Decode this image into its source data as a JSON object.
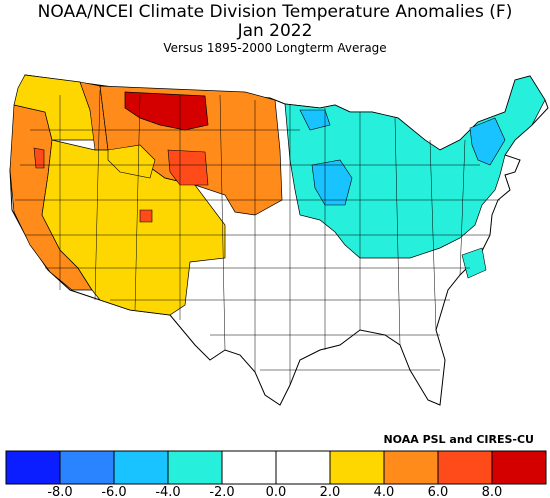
{
  "header": {
    "title": "NOAA/NCEI Climate Division Temperature Anomalies (F)",
    "period": "Jan 2022",
    "subtitle": "Versus 1895-2000 Longterm Average"
  },
  "credit": "NOAA PSL and CIRES-CU",
  "legend": {
    "bins": [
      {
        "color": "#0a1eff",
        "range": [
          -10,
          -8
        ]
      },
      {
        "color": "#2b84ff",
        "range": [
          -8,
          -6
        ]
      },
      {
        "color": "#19c3ff",
        "range": [
          -6,
          -4
        ]
      },
      {
        "color": "#26f0dc",
        "range": [
          -4,
          -2
        ]
      },
      {
        "color": "#ffffff",
        "range": [
          -2,
          0
        ]
      },
      {
        "color": "#ffffff",
        "range": [
          0,
          2
        ]
      },
      {
        "color": "#ffd700",
        "range": [
          2,
          4
        ]
      },
      {
        "color": "#ff8c1a",
        "range": [
          4,
          6
        ]
      },
      {
        "color": "#ff4a1a",
        "range": [
          6,
          8
        ]
      },
      {
        "color": "#d40000",
        "range": [
          8,
          10
        ]
      }
    ],
    "tick_labels": [
      "-8.0",
      "-6.0",
      "-4.0",
      "-2.0",
      "0.0",
      "2.0",
      "4.0",
      "6.0",
      "8.0"
    ]
  },
  "map_regions": [
    {
      "name": "pacific-coast",
      "anomaly_bin": "4 to 6"
    },
    {
      "name": "pacific-northwest",
      "anomaly_bin": "2 to 4"
    },
    {
      "name": "great-basin-southwest",
      "anomaly_bin": "2 to 4"
    },
    {
      "name": "northern-rockies-plains",
      "anomaly_bin": "4 to 6"
    },
    {
      "name": "montana-north",
      "anomaly_bin": "8 to 10"
    },
    {
      "name": "great-lakes-northeast",
      "anomaly_bin": "-4 to -2"
    },
    {
      "name": "upper-midwest-core",
      "anomaly_bin": "-6 to -4"
    },
    {
      "name": "southeast-south",
      "anomaly_bin": "-2 to 2"
    }
  ]
}
